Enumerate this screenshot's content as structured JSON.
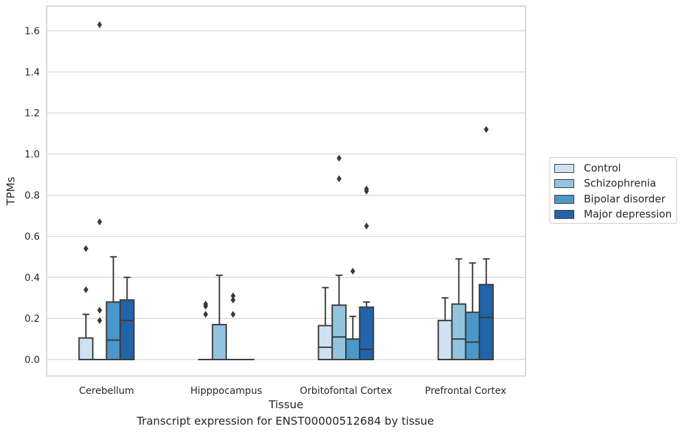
{
  "chart_data": {
    "type": "box",
    "xlabel": "Tissue",
    "ylabel": "TPMs",
    "ylim": [
      -0.08,
      1.72
    ],
    "yticks": [
      0.0,
      0.2,
      0.4,
      0.6,
      0.8,
      1.0,
      1.2,
      1.4,
      1.6
    ],
    "ytick_labels": [
      "0.0",
      "0.2",
      "0.4",
      "0.6",
      "0.8",
      "1.0",
      "1.2",
      "1.4",
      "1.6"
    ],
    "grid": true,
    "legend_position": "right",
    "categories": [
      "Cerebellum",
      "Hipppocampus",
      "Orbitofontal Cortex",
      "Prefrontal Cortex"
    ],
    "series": [
      {
        "name": "Control",
        "color": "#cfe1f2",
        "boxes": [
          {
            "q1": 0.0,
            "median": 0.0,
            "q3": 0.105,
            "whisker_low": 0.0,
            "whisker_high": 0.22,
            "outliers": [
              0.34,
              0.54
            ]
          },
          {
            "q1": 0.0,
            "median": 0.0,
            "q3": 0.0,
            "whisker_low": 0.0,
            "whisker_high": 0.0,
            "outliers": [
              0.22,
              0.26,
              0.27
            ]
          },
          {
            "q1": 0.0,
            "median": 0.06,
            "q3": 0.165,
            "whisker_low": 0.0,
            "whisker_high": 0.35,
            "outliers": []
          },
          {
            "q1": 0.0,
            "median": 0.0,
            "q3": 0.19,
            "whisker_low": 0.0,
            "whisker_high": 0.3,
            "outliers": []
          }
        ]
      },
      {
        "name": "Schizophrenia",
        "color": "#93c4de",
        "boxes": [
          {
            "q1": 0.0,
            "median": 0.0,
            "q3": 0.0,
            "whisker_low": 0.0,
            "whisker_high": 0.0,
            "outliers": [
              0.19,
              0.24,
              0.67,
              1.63
            ]
          },
          {
            "q1": 0.0,
            "median": 0.0,
            "q3": 0.17,
            "whisker_low": 0.0,
            "whisker_high": 0.41,
            "outliers": []
          },
          {
            "q1": 0.0,
            "median": 0.11,
            "q3": 0.265,
            "whisker_low": 0.0,
            "whisker_high": 0.41,
            "outliers": [
              0.88,
              0.98
            ]
          },
          {
            "q1": 0.0,
            "median": 0.1,
            "q3": 0.27,
            "whisker_low": 0.0,
            "whisker_high": 0.49,
            "outliers": []
          }
        ]
      },
      {
        "name": "Bipolar disorder",
        "color": "#4a98c9",
        "boxes": [
          {
            "q1": 0.0,
            "median": 0.095,
            "q3": 0.28,
            "whisker_low": 0.0,
            "whisker_high": 0.5,
            "outliers": []
          },
          {
            "q1": 0.0,
            "median": 0.0,
            "q3": 0.0,
            "whisker_low": 0.0,
            "whisker_high": 0.0,
            "outliers": [
              0.22,
              0.29,
              0.31
            ]
          },
          {
            "q1": 0.0,
            "median": 0.0,
            "q3": 0.1,
            "whisker_low": 0.0,
            "whisker_high": 0.21,
            "outliers": [
              0.43
            ]
          },
          {
            "q1": 0.0,
            "median": 0.085,
            "q3": 0.23,
            "whisker_low": 0.0,
            "whisker_high": 0.47,
            "outliers": []
          }
        ]
      },
      {
        "name": "Major depression",
        "color": "#2164ab",
        "boxes": [
          {
            "q1": 0.0,
            "median": 0.19,
            "q3": 0.29,
            "whisker_low": 0.0,
            "whisker_high": 0.4,
            "outliers": []
          },
          {
            "q1": 0.0,
            "median": 0.0,
            "q3": 0.0,
            "whisker_low": 0.0,
            "whisker_high": 0.0,
            "outliers": []
          },
          {
            "q1": 0.0,
            "median": 0.05,
            "q3": 0.255,
            "whisker_low": 0.0,
            "whisker_high": 0.28,
            "outliers": [
              0.65,
              0.82,
              0.83
            ]
          },
          {
            "q1": 0.0,
            "median": 0.205,
            "q3": 0.365,
            "whisker_low": 0.0,
            "whisker_high": 0.49,
            "outliers": [
              1.12
            ]
          }
        ]
      }
    ]
  },
  "caption": "Transcript expression for ENST00000512684 by tissue",
  "colors": {
    "grid": "#cccccc",
    "axes_frame": "#cccccc",
    "box_edge": "#3a3a3a",
    "text": "#262626"
  }
}
